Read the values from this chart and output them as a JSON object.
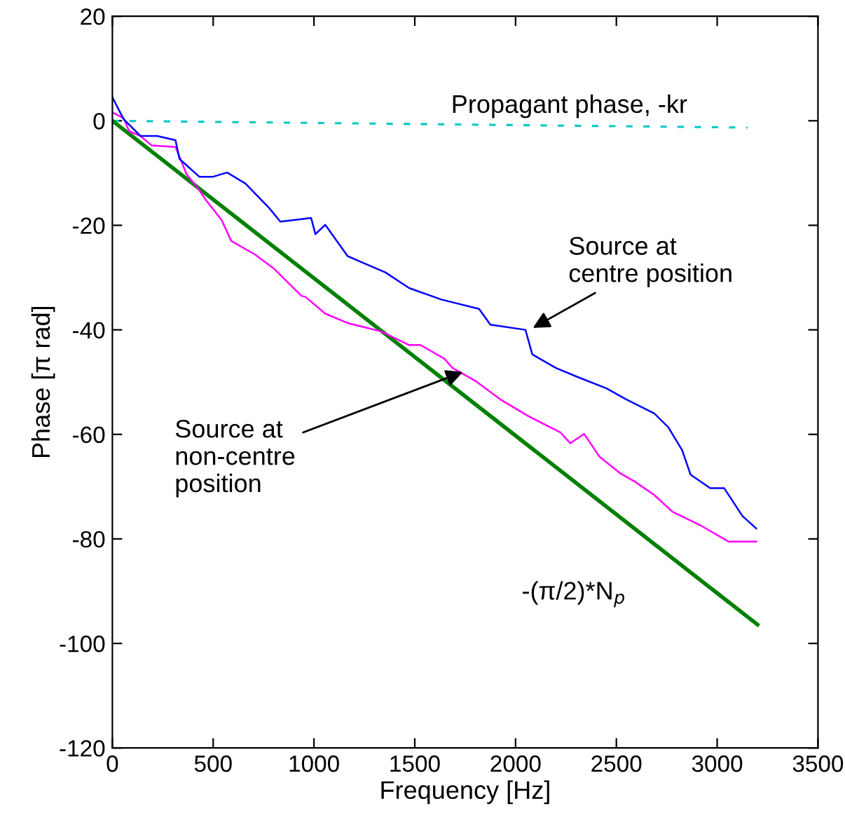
{
  "chart_data": {
    "type": "line",
    "xlabel": "Frequency [Hz]",
    "ylabel": "Phase [π rad]",
    "xlim": [
      0,
      3500
    ],
    "xticks": [
      0,
      500,
      1000,
      1500,
      2000,
      2500,
      3000,
      3500
    ],
    "ylim": [
      -120,
      20
    ],
    "yticks": [
      -120,
      -100,
      -80,
      -60,
      -40,
      -20,
      0,
      20
    ],
    "grid": false,
    "legend": false,
    "marker": "none",
    "series": [
      {
        "color": "#00c8c8",
        "line_style": "dashed",
        "x": [
          0,
          3150
        ],
        "values": [
          0,
          -1.3
        ]
      },
      {
        "color": "#008000",
        "x": [
          0,
          3200
        ],
        "values": [
          0,
          -96.4
        ]
      },
      {
        "color": "#ff00ff",
        "x": [
          0,
          56,
          83,
          139,
          194,
          313,
          368,
          431,
          465,
          542,
          590,
          708,
          799,
          938,
          958,
          1056,
          1167,
          1333,
          1472,
          1528,
          1646,
          1688,
          1806,
          1924,
          2063,
          2222,
          2271,
          2340,
          2417,
          2521,
          2590,
          2688,
          2778,
          2917,
          3056,
          3194
        ],
        "values": [
          1.6,
          0.5,
          -2,
          -2.9,
          -4.7,
          -5,
          -10.2,
          -13.3,
          -15.2,
          -19,
          -23,
          -25.6,
          -28.2,
          -33.5,
          -33.7,
          -36.9,
          -38.7,
          -40.3,
          -42.9,
          -42.9,
          -45.5,
          -47.3,
          -49.9,
          -53.3,
          -56.5,
          -59.6,
          -61.7,
          -59.9,
          -64.3,
          -67.5,
          -69,
          -71.6,
          -74.8,
          -77.4,
          -80.5,
          -80.5
        ]
      },
      {
        "color": "#0000ff",
        "x": [
          0,
          56,
          139,
          222,
          313,
          333,
          431,
          500,
          569,
          660,
          778,
          833,
          986,
          1007,
          1056,
          1167,
          1354,
          1472,
          1632,
          1819,
          1875,
          2049,
          2083,
          2201,
          2313,
          2451,
          2549,
          2688,
          2757,
          2826,
          2868,
          2965,
          3035,
          3125,
          3194
        ],
        "values": [
          4.5,
          0.3,
          -2.9,
          -2.9,
          -3.7,
          -7.3,
          -10.7,
          -10.7,
          -9.9,
          -12,
          -16.7,
          -19.3,
          -18.6,
          -21.7,
          -19.9,
          -25.9,
          -29,
          -32,
          -34.2,
          -36,
          -39,
          -40,
          -44.7,
          -47.3,
          -49.1,
          -51.2,
          -53.3,
          -56,
          -58.6,
          -63,
          -67.7,
          -70.3,
          -70.3,
          -75.6,
          -78
        ]
      }
    ],
    "annotations": [
      "Propagant phase, -kr",
      {
        "text": "Source at\ncentre position",
        "x": 2069,
        "y": -40
      },
      {
        "text": "Source at\nnon-centre\nposition",
        "x": 1757,
        "y": -47.8
      },
      "-(π/2)*N$_{p}$"
    ]
  }
}
